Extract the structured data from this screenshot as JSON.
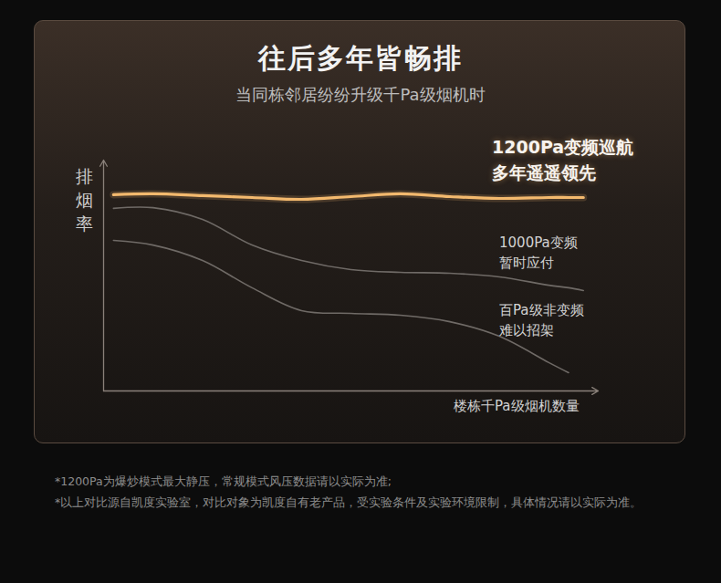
{
  "chart_data": {
    "type": "line",
    "title": "往后多年皆畅排",
    "subtitle": "当同栋邻居纷纷升级千Pa级烟机时",
    "x_label": "楼栋千Pa级烟机数量",
    "y_label": "排烟率",
    "x": [
      2,
      10,
      20,
      30,
      40,
      50,
      60,
      70,
      80,
      90,
      94,
      97
    ],
    "series": [
      {
        "name": "1200Pa变频巡航\n多年遥遥领先",
        "color": "#f3b96e",
        "values": [
          85,
          85.4,
          84.6,
          83.8,
          83,
          84.2,
          85.4,
          84.2,
          83.4,
          83.8,
          83.8,
          83.8
        ]
      },
      {
        "name": "1000Pa变频\n暂时应付",
        "color": "#6f6a66",
        "values": [
          79.1,
          79.4,
          74.3,
          63.2,
          56.5,
          52.6,
          51.4,
          51,
          49.4,
          45.8,
          44.7,
          43.5
        ]
      },
      {
        "name": "百Pa级非变频\n难以招架",
        "color": "#6f6a66",
        "values": [
          65.2,
          63.2,
          56.5,
          44.7,
          34.8,
          33.6,
          32.8,
          30,
          23.7,
          12.3,
          7.9,
          null
        ]
      }
    ],
    "xlim": [
      0,
      100
    ],
    "ylim": [
      0,
      100
    ],
    "xticks": [],
    "yticks": [],
    "tick_labels": false,
    "grid": false,
    "notes": [
      "*1200Pa为爆炒模式最大静压，常规模式风压数据请以实际为准;",
      "*以上对比源自凯度实验室，对比对象为凯度自有老产品，受实验条件及实验环境限制，具体情况请以实际为准。"
    ]
  }
}
